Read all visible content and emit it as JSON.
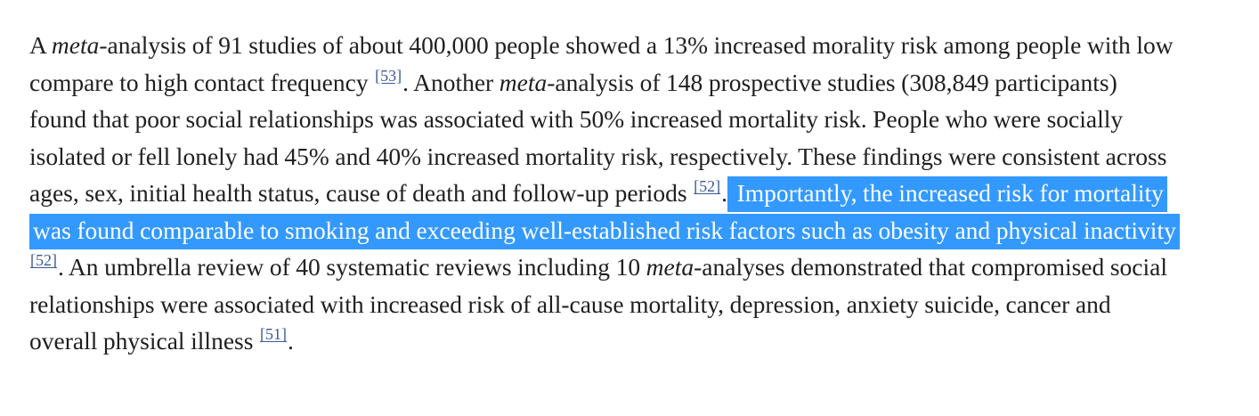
{
  "paragraph": {
    "s1_a": "A ",
    "s1_meta": "meta",
    "s1_b": "-analysis of 91 studies of about 400,000 people showed a 13% increased morality risk among people with low compare to high contact frequency ",
    "cite_53": "[53]",
    "s2_a": ". Another ",
    "s2_meta": "meta",
    "s2_b": "-analysis of 148 prospective studies (308,849 participants) found that poor social relationships was associated with 50% increased mortality risk. People who were socially isolated or fell lonely had 45% and 40% increased mortality risk, respectively. These findings were consistent across ages, sex, initial health status, cause of death and follow-up periods ",
    "cite_52a": "[52]",
    "dot1": ".",
    "highlight": " Importantly, the increased risk for mortality was found comparable to smoking and exceeding well-established risk factors such as obesity and physical inactivity ",
    "cite_52b": "[52]",
    "s3_a": ". An umbrella review of 40 systematic reviews including 10 ",
    "s3_meta": "meta",
    "s3_b": "-analyses demonstrated that compromised social relationships were associated with increased risk of all-cause mortality, depression, anxiety suicide, cancer and overall physical illness ",
    "cite_51": "[51]",
    "end": "."
  },
  "colors": {
    "selection_background": "#3399ff",
    "selection_text": "#ffffff",
    "citation_link": "#3b5998",
    "body_text": "#1f1f1f"
  }
}
